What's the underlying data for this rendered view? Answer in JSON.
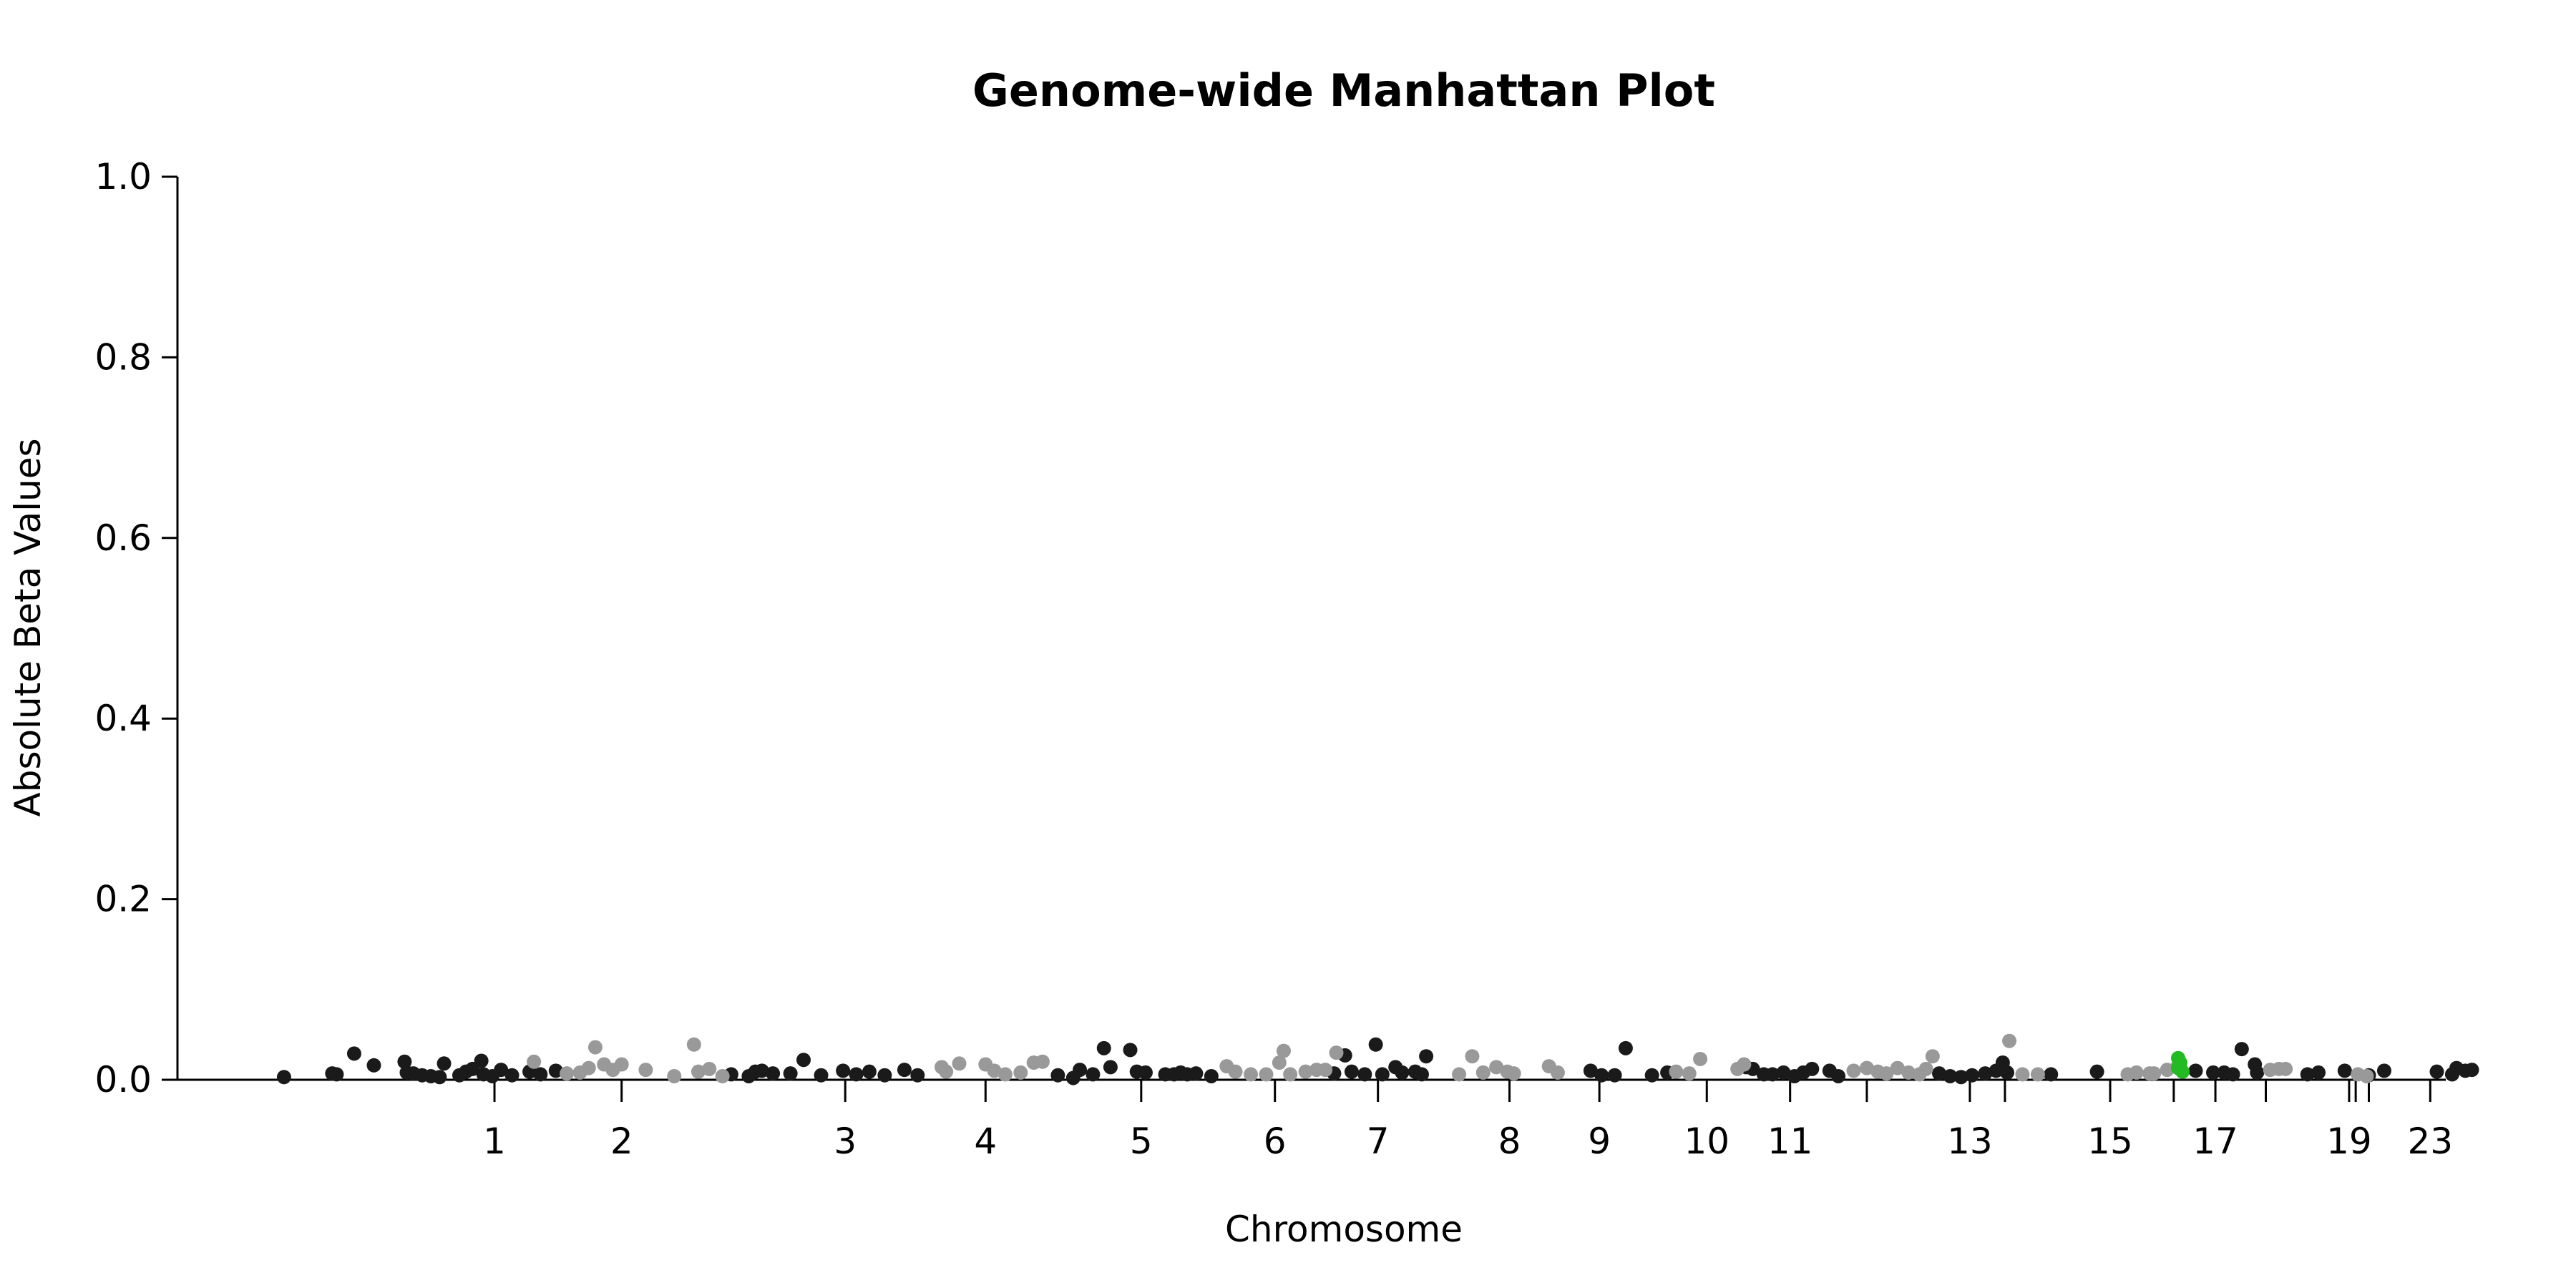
{
  "chart_data": {
    "type": "scatter",
    "title": "Genome-wide Manhattan Plot",
    "xlabel": "Chromosome",
    "ylabel": "Absolute Beta Values",
    "ylim": [
      0,
      1
    ],
    "yticks": [
      "0.0",
      "0.2",
      "0.4",
      "0.6",
      "0.8",
      "1.0"
    ],
    "xticks": [
      {
        "label": "1",
        "pos": 12.6
      },
      {
        "label": "2",
        "pos": 18.4
      },
      {
        "label": "3",
        "pos": 28.6
      },
      {
        "label": "4",
        "pos": 35.0
      },
      {
        "label": "5",
        "pos": 42.1
      },
      {
        "label": "6",
        "pos": 48.2
      },
      {
        "label": "7",
        "pos": 52.9
      },
      {
        "label": "8",
        "pos": 58.9
      },
      {
        "label": "9",
        "pos": 63.0
      },
      {
        "label": "10",
        "pos": 67.9
      },
      {
        "label": "11",
        "pos": 71.7
      },
      {
        "label": "",
        "pos": 75.2
      },
      {
        "label": "13",
        "pos": 79.9
      },
      {
        "label": "",
        "pos": 81.5
      },
      {
        "label": "15",
        "pos": 86.3
      },
      {
        "label": "",
        "pos": 89.2
      },
      {
        "label": "17",
        "pos": 91.1
      },
      {
        "label": "",
        "pos": 93.4
      },
      {
        "label": "19",
        "pos": 97.2
      },
      {
        "label": "",
        "pos": 97.5
      },
      {
        "label": "",
        "pos": 98.1
      },
      {
        "label": "23",
        "pos": 100.9
      }
    ],
    "xlim": [
      0,
      102
    ],
    "colors": {
      "dark": "#1a1a1a",
      "light": "#999999",
      "highlight": "#22bb22"
    },
    "series": [
      {
        "color": "dark",
        "points": [
          [
            3.0,
            0.003
          ],
          [
            5.2,
            0.007
          ],
          [
            5.4,
            0.006
          ],
          [
            6.2,
            0.029
          ],
          [
            7.1,
            0.016
          ],
          [
            8.5,
            0.02
          ],
          [
            8.6,
            0.008
          ],
          [
            8.9,
            0.007
          ],
          [
            9.3,
            0.005
          ],
          [
            9.7,
            0.004
          ],
          [
            10.1,
            0.003
          ],
          [
            10.3,
            0.018
          ],
          [
            11.0,
            0.005
          ],
          [
            11.3,
            0.009
          ],
          [
            11.6,
            0.012
          ],
          [
            12.0,
            0.021
          ],
          [
            12.1,
            0.006
          ],
          [
            12.5,
            0.004
          ],
          [
            12.9,
            0.011
          ],
          [
            13.4,
            0.005
          ],
          [
            14.2,
            0.009
          ],
          [
            14.7,
            0.006
          ],
          [
            15.4,
            0.01
          ],
          [
            23.4,
            0.006
          ],
          [
            24.2,
            0.004
          ],
          [
            24.5,
            0.009
          ],
          [
            24.8,
            0.01
          ],
          [
            25.3,
            0.007
          ],
          [
            26.1,
            0.007
          ],
          [
            26.7,
            0.022
          ],
          [
            27.5,
            0.005
          ],
          [
            28.5,
            0.01
          ],
          [
            29.1,
            0.006
          ],
          [
            29.7,
            0.009
          ],
          [
            30.4,
            0.005
          ],
          [
            31.3,
            0.011
          ],
          [
            31.9,
            0.005
          ],
          [
            38.3,
            0.005
          ],
          [
            39.0,
            0.002
          ],
          [
            39.3,
            0.011
          ],
          [
            39.9,
            0.006
          ],
          [
            40.4,
            0.035
          ],
          [
            40.7,
            0.014
          ],
          [
            41.6,
            0.033
          ],
          [
            41.9,
            0.009
          ],
          [
            42.3,
            0.008
          ],
          [
            43.2,
            0.006
          ],
          [
            43.6,
            0.006
          ],
          [
            43.9,
            0.008
          ],
          [
            44.2,
            0.006
          ],
          [
            44.6,
            0.007
          ],
          [
            45.3,
            0.004
          ],
          [
            50.9,
            0.007
          ],
          [
            51.4,
            0.027
          ],
          [
            51.7,
            0.009
          ],
          [
            52.3,
            0.006
          ],
          [
            52.8,
            0.039
          ],
          [
            53.1,
            0.006
          ],
          [
            53.7,
            0.014
          ],
          [
            54.0,
            0.008
          ],
          [
            54.6,
            0.009
          ],
          [
            54.9,
            0.006
          ],
          [
            55.1,
            0.026
          ],
          [
            62.6,
            0.01
          ],
          [
            63.1,
            0.005
          ],
          [
            63.7,
            0.005
          ],
          [
            64.2,
            0.035
          ],
          [
            65.4,
            0.005
          ],
          [
            66.1,
            0.008
          ],
          [
            69.7,
            0.014
          ],
          [
            70.0,
            0.012
          ],
          [
            70.5,
            0.006
          ],
          [
            70.9,
            0.006
          ],
          [
            71.4,
            0.008
          ],
          [
            71.9,
            0.004
          ],
          [
            72.3,
            0.008
          ],
          [
            72.7,
            0.012
          ],
          [
            73.5,
            0.01
          ],
          [
            73.9,
            0.004
          ],
          [
            78.5,
            0.007
          ],
          [
            79.0,
            0.004
          ],
          [
            79.5,
            0.003
          ],
          [
            80.0,
            0.005
          ],
          [
            80.6,
            0.007
          ],
          [
            81.1,
            0.01
          ],
          [
            81.4,
            0.019
          ],
          [
            81.6,
            0.008
          ],
          [
            83.6,
            0.006
          ],
          [
            85.7,
            0.009
          ],
          [
            89.5,
            0.012
          ],
          [
            90.2,
            0.01
          ],
          [
            91.0,
            0.008
          ],
          [
            91.5,
            0.008
          ],
          [
            91.9,
            0.006
          ],
          [
            92.3,
            0.034
          ],
          [
            92.9,
            0.017
          ],
          [
            93.0,
            0.008
          ],
          [
            95.3,
            0.006
          ],
          [
            95.8,
            0.008
          ],
          [
            97.0,
            0.01
          ],
          [
            98.1,
            0.005
          ],
          [
            98.8,
            0.01
          ],
          [
            101.2,
            0.009
          ],
          [
            101.9,
            0.006
          ],
          [
            102.1,
            0.013
          ],
          [
            102.5,
            0.01
          ],
          [
            102.8,
            0.011
          ]
        ]
      },
      {
        "color": "light",
        "points": [
          [
            14.4,
            0.02
          ],
          [
            15.9,
            0.007
          ],
          [
            16.5,
            0.008
          ],
          [
            16.9,
            0.013
          ],
          [
            17.2,
            0.036
          ],
          [
            17.6,
            0.017
          ],
          [
            18.0,
            0.011
          ],
          [
            18.4,
            0.017
          ],
          [
            19.5,
            0.011
          ],
          [
            20.8,
            0.004
          ],
          [
            21.7,
            0.039
          ],
          [
            21.9,
            0.009
          ],
          [
            22.4,
            0.012
          ],
          [
            23.0,
            0.004
          ],
          [
            33.0,
            0.014
          ],
          [
            33.2,
            0.009
          ],
          [
            33.8,
            0.018
          ],
          [
            35.0,
            0.017
          ],
          [
            35.4,
            0.01
          ],
          [
            35.9,
            0.006
          ],
          [
            36.6,
            0.008
          ],
          [
            37.2,
            0.019
          ],
          [
            37.6,
            0.02
          ],
          [
            46.0,
            0.015
          ],
          [
            46.4,
            0.009
          ],
          [
            47.1,
            0.006
          ],
          [
            47.8,
            0.006
          ],
          [
            48.4,
            0.019
          ],
          [
            48.6,
            0.032
          ],
          [
            48.9,
            0.006
          ],
          [
            49.6,
            0.009
          ],
          [
            50.1,
            0.011
          ],
          [
            50.5,
            0.011
          ],
          [
            51.0,
            0.03
          ],
          [
            56.6,
            0.006
          ],
          [
            57.2,
            0.026
          ],
          [
            57.7,
            0.008
          ],
          [
            58.3,
            0.014
          ],
          [
            58.8,
            0.009
          ],
          [
            59.1,
            0.007
          ],
          [
            60.7,
            0.015
          ],
          [
            61.1,
            0.008
          ],
          [
            66.5,
            0.009
          ],
          [
            67.1,
            0.007
          ],
          [
            67.6,
            0.023
          ],
          [
            69.3,
            0.012
          ],
          [
            69.6,
            0.017
          ],
          [
            74.6,
            0.01
          ],
          [
            75.2,
            0.013
          ],
          [
            75.7,
            0.009
          ],
          [
            76.1,
            0.007
          ],
          [
            76.6,
            0.013
          ],
          [
            77.1,
            0.008
          ],
          [
            77.6,
            0.006
          ],
          [
            77.9,
            0.012
          ],
          [
            78.2,
            0.026
          ],
          [
            81.7,
            0.043
          ],
          [
            82.3,
            0.006
          ],
          [
            83.0,
            0.006
          ],
          [
            87.1,
            0.006
          ],
          [
            87.5,
            0.008
          ],
          [
            88.1,
            0.007
          ],
          [
            88.3,
            0.007
          ],
          [
            88.9,
            0.011
          ],
          [
            89.4,
            0.016
          ],
          [
            93.6,
            0.011
          ],
          [
            94.0,
            0.012
          ],
          [
            94.3,
            0.012
          ],
          [
            97.6,
            0.006
          ],
          [
            98.0,
            0.004
          ]
        ]
      },
      {
        "color": "highlight",
        "points": [
          [
            89.4,
            0.024
          ],
          [
            89.5,
            0.019
          ],
          [
            89.4,
            0.013
          ],
          [
            89.6,
            0.009
          ]
        ]
      }
    ]
  }
}
